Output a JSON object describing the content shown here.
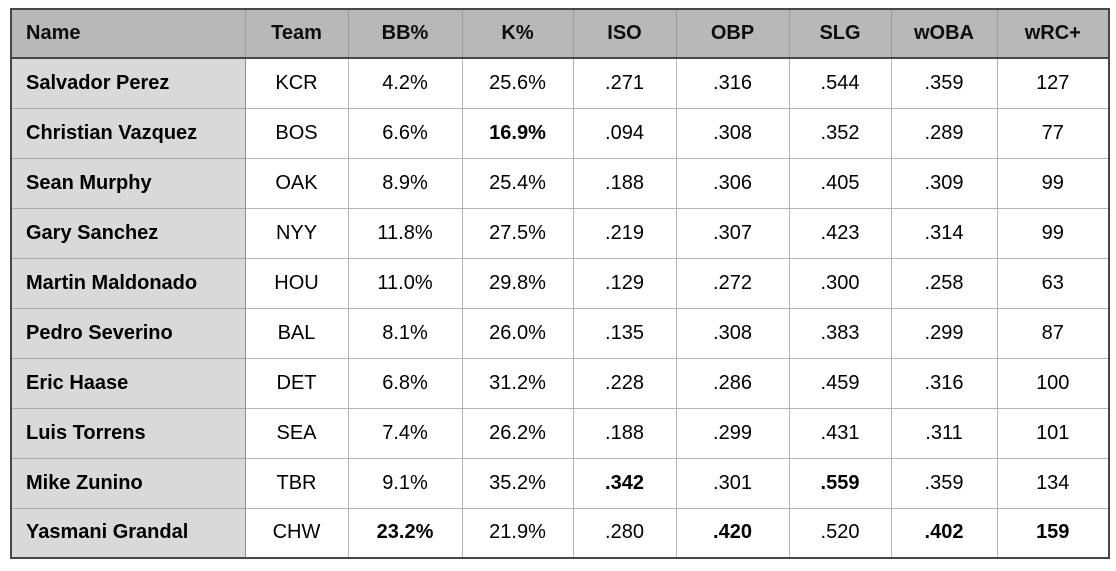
{
  "chart_data": {
    "type": "table",
    "columns": [
      "Name",
      "Team",
      "BB%",
      "K%",
      "ISO",
      "OBP",
      "SLG",
      "wOBA",
      "wRC+"
    ],
    "rows": [
      [
        "Salvador Perez",
        "KCR",
        "4.2%",
        "25.6%",
        ".271",
        ".316",
        ".544",
        ".359",
        "127"
      ],
      [
        "Christian Vazquez",
        "BOS",
        "6.6%",
        "16.9%",
        ".094",
        ".308",
        ".352",
        ".289",
        "77"
      ],
      [
        "Sean Murphy",
        "OAK",
        "8.9%",
        "25.4%",
        ".188",
        ".306",
        ".405",
        ".309",
        "99"
      ],
      [
        "Gary Sanchez",
        "NYY",
        "11.8%",
        "27.5%",
        ".219",
        ".307",
        ".423",
        ".314",
        "99"
      ],
      [
        "Martin Maldonado",
        "HOU",
        "11.0%",
        "29.8%",
        ".129",
        ".272",
        ".300",
        ".258",
        "63"
      ],
      [
        "Pedro Severino",
        "BAL",
        "8.1%",
        "26.0%",
        ".135",
        ".308",
        ".383",
        ".299",
        "87"
      ],
      [
        "Eric Haase",
        "DET",
        "6.8%",
        "31.2%",
        ".228",
        ".286",
        ".459",
        ".316",
        "100"
      ],
      [
        "Luis Torrens",
        "SEA",
        "7.4%",
        "26.2%",
        ".188",
        ".299",
        ".431",
        ".311",
        "101"
      ],
      [
        "Mike Zunino",
        "TBR",
        "9.1%",
        "35.2%",
        ".342",
        ".301",
        ".559",
        ".359",
        "134"
      ],
      [
        "Yasmani Grandal",
        "CHW",
        "23.2%",
        "21.9%",
        ".280",
        ".420",
        ".520",
        ".402",
        "159"
      ]
    ],
    "bold_cells": [
      [
        1,
        3
      ],
      [
        8,
        4
      ],
      [
        8,
        6
      ],
      [
        9,
        2
      ],
      [
        9,
        5
      ],
      [
        9,
        7
      ],
      [
        9,
        8
      ]
    ],
    "bold_first_column": true,
    "layout_hints": {
      "grid": true,
      "header_row_shaded": true,
      "name_column_shaded": true
    }
  },
  "colors": {
    "header_bg": "#b8b8b8",
    "name_column_bg": "#d9d9d9",
    "outer_border": "#474747",
    "grid_line": "#b5b5b5",
    "name_divider": "#8e8e8e",
    "text": "#000000"
  }
}
